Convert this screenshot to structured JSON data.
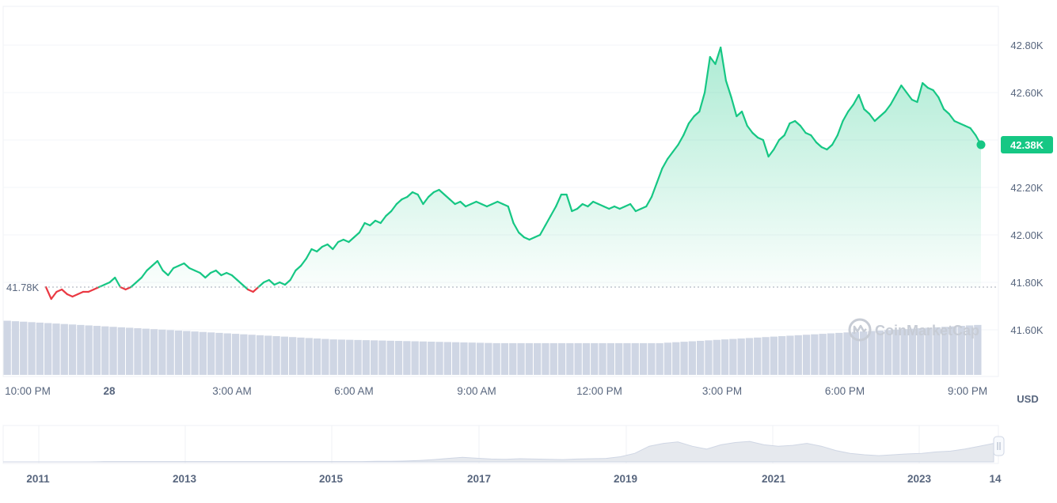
{
  "chart_data": {
    "type": "line",
    "currency": "USD",
    "y_axis": {
      "ticks": [
        {
          "value": 42800,
          "label": "42.80K"
        },
        {
          "value": 42600,
          "label": "42.60K"
        },
        {
          "value": 42200,
          "label": "42.20K"
        },
        {
          "value": 42000,
          "label": "42.00K"
        },
        {
          "value": 41800,
          "label": "41.80K"
        },
        {
          "value": 41600,
          "label": "41.60K"
        }
      ],
      "range": [
        41420,
        42980
      ]
    },
    "x_axis": {
      "ticks": [
        {
          "label": "10:00 PM",
          "t": 0,
          "bold": false
        },
        {
          "label": "28",
          "t": 0.0646,
          "bold": true
        },
        {
          "label": "3:00 AM",
          "t": 0.1893,
          "bold": false
        },
        {
          "label": "6:00 AM",
          "t": 3.2,
          "bold": false
        },
        {
          "label": "9:00 AM",
          "t": 4.45,
          "bold": false
        },
        {
          "label": "12:00 PM",
          "t": 5.7,
          "bold": false
        },
        {
          "label": "3:00 PM",
          "t": 6.95,
          "bold": false
        },
        {
          "label": "6:00 PM",
          "t": 8.2,
          "bold": false
        },
        {
          "label": "9:00 PM",
          "t": 9.45,
          "bold": false
        }
      ]
    },
    "reference_line": {
      "value": 41780,
      "label": "41.78K"
    },
    "current_price": {
      "value": 42380,
      "label": "42.38K"
    },
    "colors": {
      "up": "#16c784",
      "down": "#ea3943",
      "volume": "#cfd6e4",
      "tag": "#16c784"
    },
    "series": [
      {
        "values": [
          41780,
          41730,
          41760,
          41770,
          41750,
          41740,
          41750,
          41760,
          41760,
          41770,
          41780,
          41790,
          41800,
          41820,
          41780,
          41770,
          41780,
          41800,
          41820,
          41850,
          41870,
          41890,
          41850,
          41830,
          41860,
          41870,
          41880,
          41860,
          41850,
          41840,
          41820,
          41840,
          41850,
          41830,
          41840,
          41830,
          41810,
          41790,
          41770,
          41760,
          41780,
          41800,
          41810,
          41790,
          41800,
          41790,
          41810,
          41850,
          41870,
          41900,
          41940,
          41930,
          41950,
          41960,
          41940,
          41970,
          41980,
          41970,
          41990,
          42010,
          42050,
          42040,
          42060,
          42050,
          42080,
          42100,
          42130,
          42150,
          42160,
          42180,
          42170,
          42130,
          42160,
          42180,
          42190,
          42170,
          42150,
          42130,
          42140,
          42120,
          42130,
          42140,
          42130,
          42120,
          42130,
          42140,
          42130,
          42120,
          42050,
          42010,
          41990,
          41980,
          41990,
          42000,
          42040,
          42080,
          42120,
          42170,
          42170,
          42100,
          42110,
          42130,
          42120,
          42140,
          42130,
          42120,
          42110,
          42120,
          42110,
          42120,
          42130,
          42100,
          42110,
          42120,
          42160,
          42220,
          42280,
          42320,
          42350,
          42380,
          42420,
          42470,
          42500,
          42520,
          42600,
          42750,
          42720,
          42790,
          42650,
          42580,
          42500,
          42520,
          42460,
          42430,
          42410,
          42400,
          42330,
          42360,
          42400,
          42420,
          42470,
          42480,
          42460,
          42430,
          42420,
          42390,
          42370,
          42360,
          42380,
          42420,
          42480,
          42520,
          42550,
          42590,
          42530,
          42510,
          42480,
          42500,
          42520,
          42550,
          42590,
          42630,
          42600,
          42570,
          42560,
          42640,
          42620,
          42610,
          42580,
          42530,
          42510,
          42480,
          42470,
          42460,
          42450,
          42420,
          42380
        ]
      }
    ],
    "volume": {
      "values": [
        0.58,
        0.575,
        0.57,
        0.565,
        0.56,
        0.555,
        0.55,
        0.545,
        0.54,
        0.535,
        0.53,
        0.525,
        0.52,
        0.515,
        0.51,
        0.505,
        0.5,
        0.495,
        0.49,
        0.485,
        0.48,
        0.475,
        0.47,
        0.465,
        0.46,
        0.455,
        0.45,
        0.445,
        0.44,
        0.435,
        0.43,
        0.425,
        0.42,
        0.415,
        0.41,
        0.405,
        0.4,
        0.395,
        0.39,
        0.385,
        0.38,
        0.378,
        0.376,
        0.374,
        0.372,
        0.37,
        0.368,
        0.366,
        0.364,
        0.362,
        0.36,
        0.358,
        0.356,
        0.354,
        0.352,
        0.35,
        0.348,
        0.346,
        0.344,
        0.342,
        0.34,
        0.34,
        0.34,
        0.34,
        0.34,
        0.34,
        0.34,
        0.34,
        0.34,
        0.34,
        0.34,
        0.34,
        0.34,
        0.34,
        0.34,
        0.34,
        0.34,
        0.34,
        0.34,
        0.34,
        0.34,
        0.345,
        0.35,
        0.355,
        0.36,
        0.365,
        0.37,
        0.375,
        0.38,
        0.385,
        0.39,
        0.395,
        0.4,
        0.405,
        0.41,
        0.415,
        0.42,
        0.425,
        0.43,
        0.435,
        0.44,
        0.445,
        0.45,
        0.455,
        0.46,
        0.465,
        0.47,
        0.475,
        0.48,
        0.485,
        0.49,
        0.495,
        0.5,
        0.505,
        0.51,
        0.515,
        0.52,
        0.525,
        0.53,
        0.535
      ],
      "note": ""
    },
    "navigator": {
      "ticks": [
        {
          "label": "2011"
        },
        {
          "label": "2013"
        },
        {
          "label": "2015"
        },
        {
          "label": "2017"
        },
        {
          "label": "2019"
        },
        {
          "label": "2021"
        },
        {
          "label": "2023"
        },
        {
          "label": "14"
        }
      ],
      "history": [
        0.0,
        0.0,
        0.0,
        0.0,
        0.0,
        0.0,
        0.0,
        0.01,
        0.01,
        0.01,
        0.01,
        0.01,
        0.01,
        0.01,
        0.01,
        0.01,
        0.01,
        0.01,
        0.01,
        0.01,
        0.01,
        0.01,
        0.01,
        0.01,
        0.01,
        0.01,
        0.02,
        0.02,
        0.03,
        0.05,
        0.08,
        0.12,
        0.16,
        0.13,
        0.1,
        0.09,
        0.11,
        0.1,
        0.09,
        0.08,
        0.1,
        0.11,
        0.12,
        0.18,
        0.3,
        0.55,
        0.65,
        0.7,
        0.55,
        0.45,
        0.6,
        0.68,
        0.72,
        0.6,
        0.55,
        0.58,
        0.65,
        0.55,
        0.4,
        0.3,
        0.25,
        0.22,
        0.25,
        0.28,
        0.3,
        0.35,
        0.38,
        0.45,
        0.55,
        0.65
      ]
    }
  },
  "watermark": {
    "brand": "CoinMarketCap"
  }
}
